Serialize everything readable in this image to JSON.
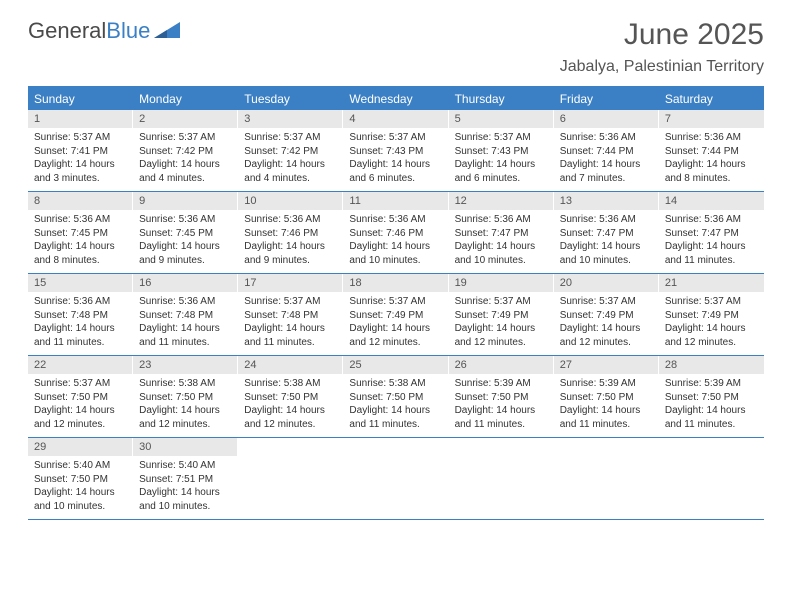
{
  "logo": {
    "text_gray": "General",
    "text_blue": "Blue"
  },
  "title": "June 2025",
  "location": "Jabalya, Palestinian Territory",
  "colors": {
    "accent": "#3b7fc4",
    "header_text": "#ffffff",
    "daynum_bg": "#e8e8e8",
    "body_text": "#333333",
    "title_text": "#555555",
    "background": "#ffffff"
  },
  "typography": {
    "title_fontsize": 30,
    "location_fontsize": 16,
    "dayheader_fontsize": 12,
    "daynum_fontsize": 11,
    "body_fontsize": 10
  },
  "layout": {
    "columns": 7,
    "weeks": 5
  },
  "day_names": [
    "Sunday",
    "Monday",
    "Tuesday",
    "Wednesday",
    "Thursday",
    "Friday",
    "Saturday"
  ],
  "days": [
    {
      "n": "1",
      "sunrise": "5:37 AM",
      "sunset": "7:41 PM",
      "daylight": "14 hours and 3 minutes."
    },
    {
      "n": "2",
      "sunrise": "5:37 AM",
      "sunset": "7:42 PM",
      "daylight": "14 hours and 4 minutes."
    },
    {
      "n": "3",
      "sunrise": "5:37 AM",
      "sunset": "7:42 PM",
      "daylight": "14 hours and 4 minutes."
    },
    {
      "n": "4",
      "sunrise": "5:37 AM",
      "sunset": "7:43 PM",
      "daylight": "14 hours and 6 minutes."
    },
    {
      "n": "5",
      "sunrise": "5:37 AM",
      "sunset": "7:43 PM",
      "daylight": "14 hours and 6 minutes."
    },
    {
      "n": "6",
      "sunrise": "5:36 AM",
      "sunset": "7:44 PM",
      "daylight": "14 hours and 7 minutes."
    },
    {
      "n": "7",
      "sunrise": "5:36 AM",
      "sunset": "7:44 PM",
      "daylight": "14 hours and 8 minutes."
    },
    {
      "n": "8",
      "sunrise": "5:36 AM",
      "sunset": "7:45 PM",
      "daylight": "14 hours and 8 minutes."
    },
    {
      "n": "9",
      "sunrise": "5:36 AM",
      "sunset": "7:45 PM",
      "daylight": "14 hours and 9 minutes."
    },
    {
      "n": "10",
      "sunrise": "5:36 AM",
      "sunset": "7:46 PM",
      "daylight": "14 hours and 9 minutes."
    },
    {
      "n": "11",
      "sunrise": "5:36 AM",
      "sunset": "7:46 PM",
      "daylight": "14 hours and 10 minutes."
    },
    {
      "n": "12",
      "sunrise": "5:36 AM",
      "sunset": "7:47 PM",
      "daylight": "14 hours and 10 minutes."
    },
    {
      "n": "13",
      "sunrise": "5:36 AM",
      "sunset": "7:47 PM",
      "daylight": "14 hours and 10 minutes."
    },
    {
      "n": "14",
      "sunrise": "5:36 AM",
      "sunset": "7:47 PM",
      "daylight": "14 hours and 11 minutes."
    },
    {
      "n": "15",
      "sunrise": "5:36 AM",
      "sunset": "7:48 PM",
      "daylight": "14 hours and 11 minutes."
    },
    {
      "n": "16",
      "sunrise": "5:36 AM",
      "sunset": "7:48 PM",
      "daylight": "14 hours and 11 minutes."
    },
    {
      "n": "17",
      "sunrise": "5:37 AM",
      "sunset": "7:48 PM",
      "daylight": "14 hours and 11 minutes."
    },
    {
      "n": "18",
      "sunrise": "5:37 AM",
      "sunset": "7:49 PM",
      "daylight": "14 hours and 12 minutes."
    },
    {
      "n": "19",
      "sunrise": "5:37 AM",
      "sunset": "7:49 PM",
      "daylight": "14 hours and 12 minutes."
    },
    {
      "n": "20",
      "sunrise": "5:37 AM",
      "sunset": "7:49 PM",
      "daylight": "14 hours and 12 minutes."
    },
    {
      "n": "21",
      "sunrise": "5:37 AM",
      "sunset": "7:49 PM",
      "daylight": "14 hours and 12 minutes."
    },
    {
      "n": "22",
      "sunrise": "5:37 AM",
      "sunset": "7:50 PM",
      "daylight": "14 hours and 12 minutes."
    },
    {
      "n": "23",
      "sunrise": "5:38 AM",
      "sunset": "7:50 PM",
      "daylight": "14 hours and 12 minutes."
    },
    {
      "n": "24",
      "sunrise": "5:38 AM",
      "sunset": "7:50 PM",
      "daylight": "14 hours and 12 minutes."
    },
    {
      "n": "25",
      "sunrise": "5:38 AM",
      "sunset": "7:50 PM",
      "daylight": "14 hours and 11 minutes."
    },
    {
      "n": "26",
      "sunrise": "5:39 AM",
      "sunset": "7:50 PM",
      "daylight": "14 hours and 11 minutes."
    },
    {
      "n": "27",
      "sunrise": "5:39 AM",
      "sunset": "7:50 PM",
      "daylight": "14 hours and 11 minutes."
    },
    {
      "n": "28",
      "sunrise": "5:39 AM",
      "sunset": "7:50 PM",
      "daylight": "14 hours and 11 minutes."
    },
    {
      "n": "29",
      "sunrise": "5:40 AM",
      "sunset": "7:50 PM",
      "daylight": "14 hours and 10 minutes."
    },
    {
      "n": "30",
      "sunrise": "5:40 AM",
      "sunset": "7:51 PM",
      "daylight": "14 hours and 10 minutes."
    }
  ],
  "labels": {
    "sunrise": "Sunrise:",
    "sunset": "Sunset:",
    "daylight": "Daylight:"
  }
}
